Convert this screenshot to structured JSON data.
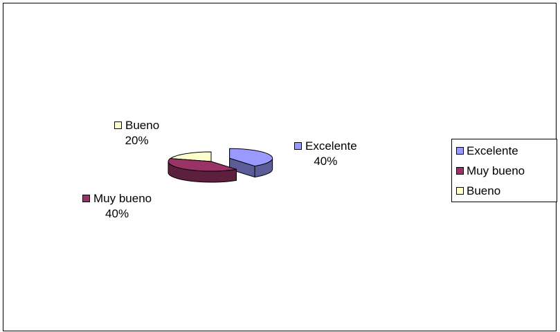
{
  "chart_data": {
    "type": "pie",
    "title": "",
    "categories": [
      "Excelente",
      "Muy bueno",
      "Bueno"
    ],
    "values": [
      40,
      40,
      20
    ],
    "value_labels": [
      "40%",
      "40%",
      "20%"
    ],
    "colors": [
      "#9999ff",
      "#993366",
      "#ffffcc"
    ],
    "side_colors": [
      "#5c5c99",
      "#5c1f3d",
      "#99997a"
    ],
    "exploded": [
      true,
      false,
      false
    ],
    "legend_placement": "right",
    "three_d": true
  }
}
